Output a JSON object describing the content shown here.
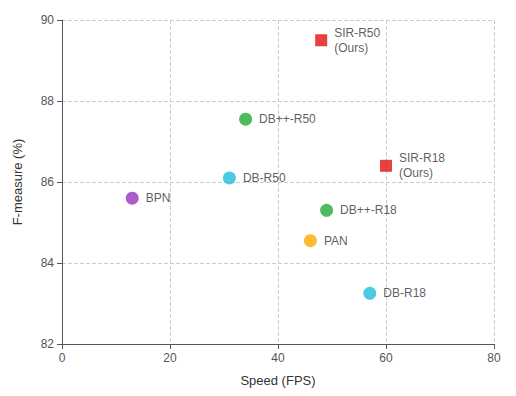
{
  "chart_data": {
    "type": "scatter",
    "xlabel": "Speed (FPS)",
    "ylabel": "F-measure (%)",
    "xlim": [
      0,
      80
    ],
    "ylim": [
      82,
      90
    ],
    "xticks": [
      0,
      20,
      40,
      60,
      80
    ],
    "yticks": [
      82,
      84,
      86,
      88,
      90
    ],
    "grid": true,
    "series": [
      {
        "name": "SIR-R50\n(Ours)",
        "color": "#dd1111",
        "marker": "square",
        "x": [
          48
        ],
        "values": [
          89.5
        ]
      },
      {
        "name": "SIR-R18\n(Ours)",
        "color": "#dd1111",
        "marker": "square",
        "x": [
          60
        ],
        "values": [
          86.4
        ]
      },
      {
        "name": "DB++-R50",
        "color": "#22aa33",
        "marker": "circle",
        "x": [
          34
        ],
        "values": [
          87.55
        ]
      },
      {
        "name": "DB-R50",
        "color": "#22bbdd",
        "marker": "circle",
        "x": [
          31
        ],
        "values": [
          86.1
        ]
      },
      {
        "name": "BPN",
        "color": "#9933bb",
        "marker": "circle",
        "x": [
          13
        ],
        "values": [
          85.6
        ]
      },
      {
        "name": "DB++-R18",
        "color": "#22aa33",
        "marker": "circle",
        "x": [
          49
        ],
        "values": [
          85.3
        ]
      },
      {
        "name": "PAN",
        "color": "#ffaa00",
        "marker": "circle",
        "x": [
          46
        ],
        "values": [
          84.55
        ]
      },
      {
        "name": "DB-R18",
        "color": "#22bbdd",
        "marker": "circle",
        "x": [
          57
        ],
        "values": [
          83.25
        ]
      }
    ]
  }
}
